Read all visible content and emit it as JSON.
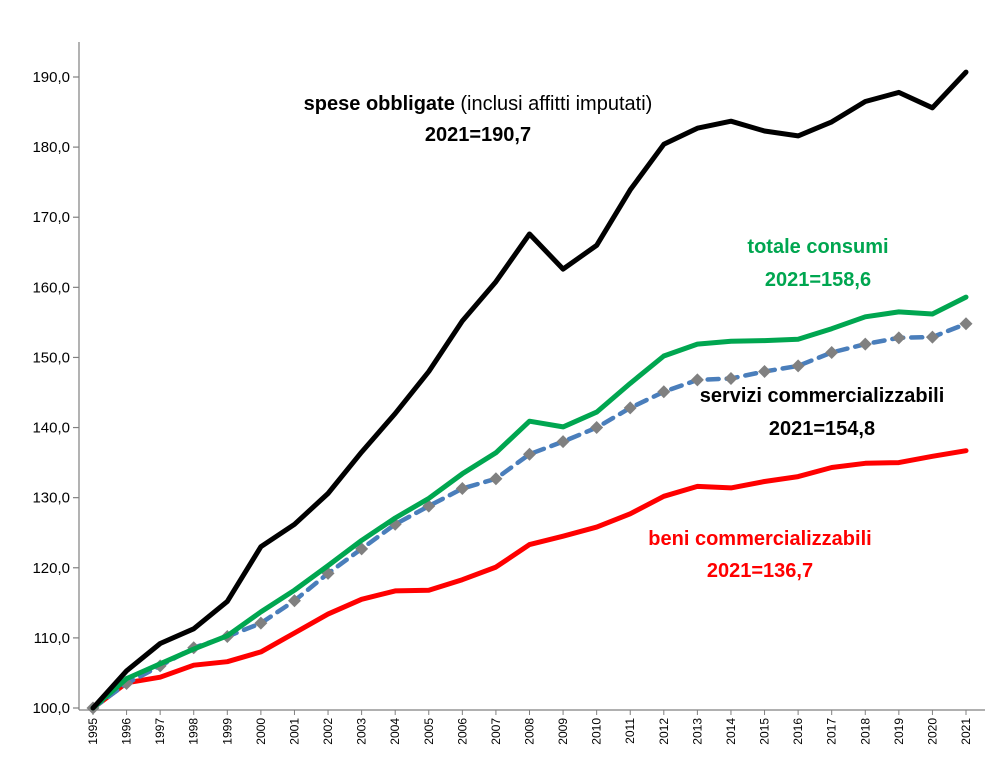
{
  "chart_data": {
    "type": "line",
    "x": [
      "1995",
      "1996",
      "1997",
      "1998",
      "1999",
      "2000",
      "2001",
      "2002",
      "2003",
      "2004",
      "2005",
      "2006",
      "2007",
      "2008",
      "2009",
      "2010",
      "2011",
      "2012",
      "2013",
      "2014",
      "2015",
      "2016",
      "2017",
      "2018",
      "2019",
      "2020",
      "2021"
    ],
    "ylim": [
      100,
      190
    ],
    "yticks": [
      "100,0",
      "110,0",
      "120,0",
      "130,0",
      "140,0",
      "150,0",
      "160,0",
      "170,0",
      "180,0",
      "190,0"
    ],
    "grid": false,
    "series": [
      {
        "key": "spese",
        "color": "#000000",
        "style": "solid",
        "values": [
          100.0,
          105.3,
          109.2,
          111.3,
          115.2,
          123.0,
          126.2,
          130.6,
          136.5,
          142.0,
          148.0,
          155.2,
          160.8,
          167.6,
          162.6,
          166.0,
          173.9,
          180.4,
          182.7,
          183.7,
          182.3,
          181.6,
          183.6,
          186.5,
          187.8,
          185.6,
          190.7
        ]
      },
      {
        "key": "totale",
        "color": "#00A650",
        "style": "solid",
        "values": [
          100.0,
          104.2,
          106.3,
          108.4,
          110.3,
          113.7,
          116.8,
          120.3,
          123.9,
          127.1,
          129.9,
          133.4,
          136.4,
          140.9,
          140.1,
          142.2,
          146.3,
          150.2,
          151.9,
          152.3,
          152.4,
          152.6,
          154.1,
          155.8,
          156.5,
          156.2,
          158.6
        ]
      },
      {
        "key": "servizi",
        "color": "#4A7EBB",
        "marker_color": "#808080",
        "style": "dashed",
        "values": [
          100.0,
          103.5,
          106.0,
          108.6,
          110.2,
          112.1,
          115.3,
          119.2,
          122.7,
          126.2,
          128.8,
          131.3,
          132.7,
          136.2,
          138.0,
          140.0,
          142.8,
          145.1,
          146.8,
          147.0,
          148.0,
          148.8,
          150.7,
          151.9,
          152.8,
          152.9,
          154.8
        ]
      },
      {
        "key": "beni",
        "color": "#FF0000",
        "style": "solid",
        "values": [
          100.0,
          103.6,
          104.4,
          106.1,
          106.6,
          108.0,
          110.7,
          113.4,
          115.5,
          116.7,
          116.8,
          118.3,
          120.1,
          123.3,
          124.5,
          125.8,
          127.7,
          130.2,
          131.6,
          131.4,
          132.3,
          133.0,
          134.3,
          134.9,
          135.0,
          135.9,
          136.7
        ]
      }
    ],
    "annotations": [
      {
        "key": "spese",
        "color": "#000000",
        "bold": "spese obbligate",
        "normal": " (inclusi affitti imputati)",
        "line2": "2021=190,7"
      },
      {
        "key": "totale",
        "color": "#00A650",
        "bold": "totale consumi",
        "normal": "",
        "line2": "2021=158,6"
      },
      {
        "key": "servizi",
        "color": "#000000",
        "bold": "servizi commercializzabili",
        "normal": "",
        "line2": "2021=154,8"
      },
      {
        "key": "beni",
        "color": "#FF0000",
        "bold": "beni commercializzabili",
        "normal": "",
        "line2": "2021=136,7"
      }
    ]
  }
}
